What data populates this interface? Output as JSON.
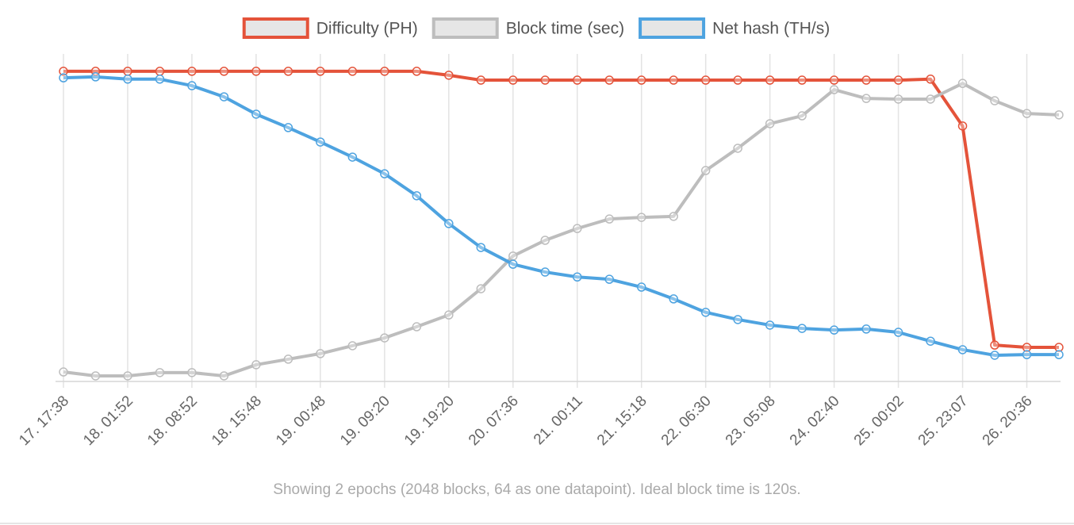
{
  "chart_data": {
    "type": "line",
    "categories": [
      "17. 17:38",
      null,
      "18. 01:52",
      null,
      "18. 08:52",
      null,
      "18. 15:48",
      null,
      "19. 00:48",
      null,
      "19. 09:20",
      null,
      "19. 19:20",
      null,
      "20. 07:36",
      null,
      "21. 00:11",
      null,
      "21. 15:18",
      null,
      "22. 06:30",
      null,
      "23. 05:08",
      null,
      "24. 02:40",
      null,
      "25. 00:02",
      null,
      "25. 23:07",
      null,
      "26. 20:36",
      null
    ],
    "series": [
      {
        "name": "Difficulty (PH)",
        "color": "#e4533a",
        "values": [
          94.7,
          94.7,
          94.7,
          94.7,
          94.7,
          94.7,
          94.7,
          94.7,
          94.7,
          94.7,
          94.7,
          94.7,
          93.5,
          92.0,
          92.0,
          92.0,
          92.0,
          92.0,
          92.0,
          92.0,
          92.0,
          92.0,
          92.0,
          92.0,
          92.0,
          92.0,
          92.0,
          92.3,
          78.0,
          11.1,
          10.4,
          10.4
        ]
      },
      {
        "name": "Block time (sec)",
        "color": "#bdbdbd",
        "values": [
          2.9,
          1.7,
          1.7,
          2.7,
          2.7,
          1.7,
          5.1,
          6.8,
          8.5,
          10.9,
          13.3,
          16.7,
          20.3,
          28.3,
          38.3,
          43.1,
          46.7,
          49.6,
          50.1,
          50.4,
          64.4,
          71.2,
          78.7,
          81.1,
          89.1,
          86.4,
          86.2,
          86.2,
          91.0,
          85.7,
          81.8,
          81.4
        ]
      },
      {
        "name": "Net hash (TH/s)",
        "color": "#4ea3e0",
        "values": [
          92.7,
          93.0,
          92.3,
          92.3,
          90.3,
          86.9,
          81.6,
          77.5,
          73.1,
          68.5,
          63.4,
          56.7,
          48.2,
          40.9,
          35.8,
          33.4,
          31.9,
          31.2,
          28.8,
          25.2,
          21.1,
          18.9,
          17.2,
          16.2,
          15.7,
          16.0,
          15.0,
          12.3,
          9.7,
          8.0,
          8.2,
          8.2
        ]
      }
    ],
    "ylim": [
      0,
      100
    ],
    "grid": true,
    "footnote": "Showing 2 epochs (2048 blocks, 64 as one datapoint). Ideal block time is 120s."
  }
}
